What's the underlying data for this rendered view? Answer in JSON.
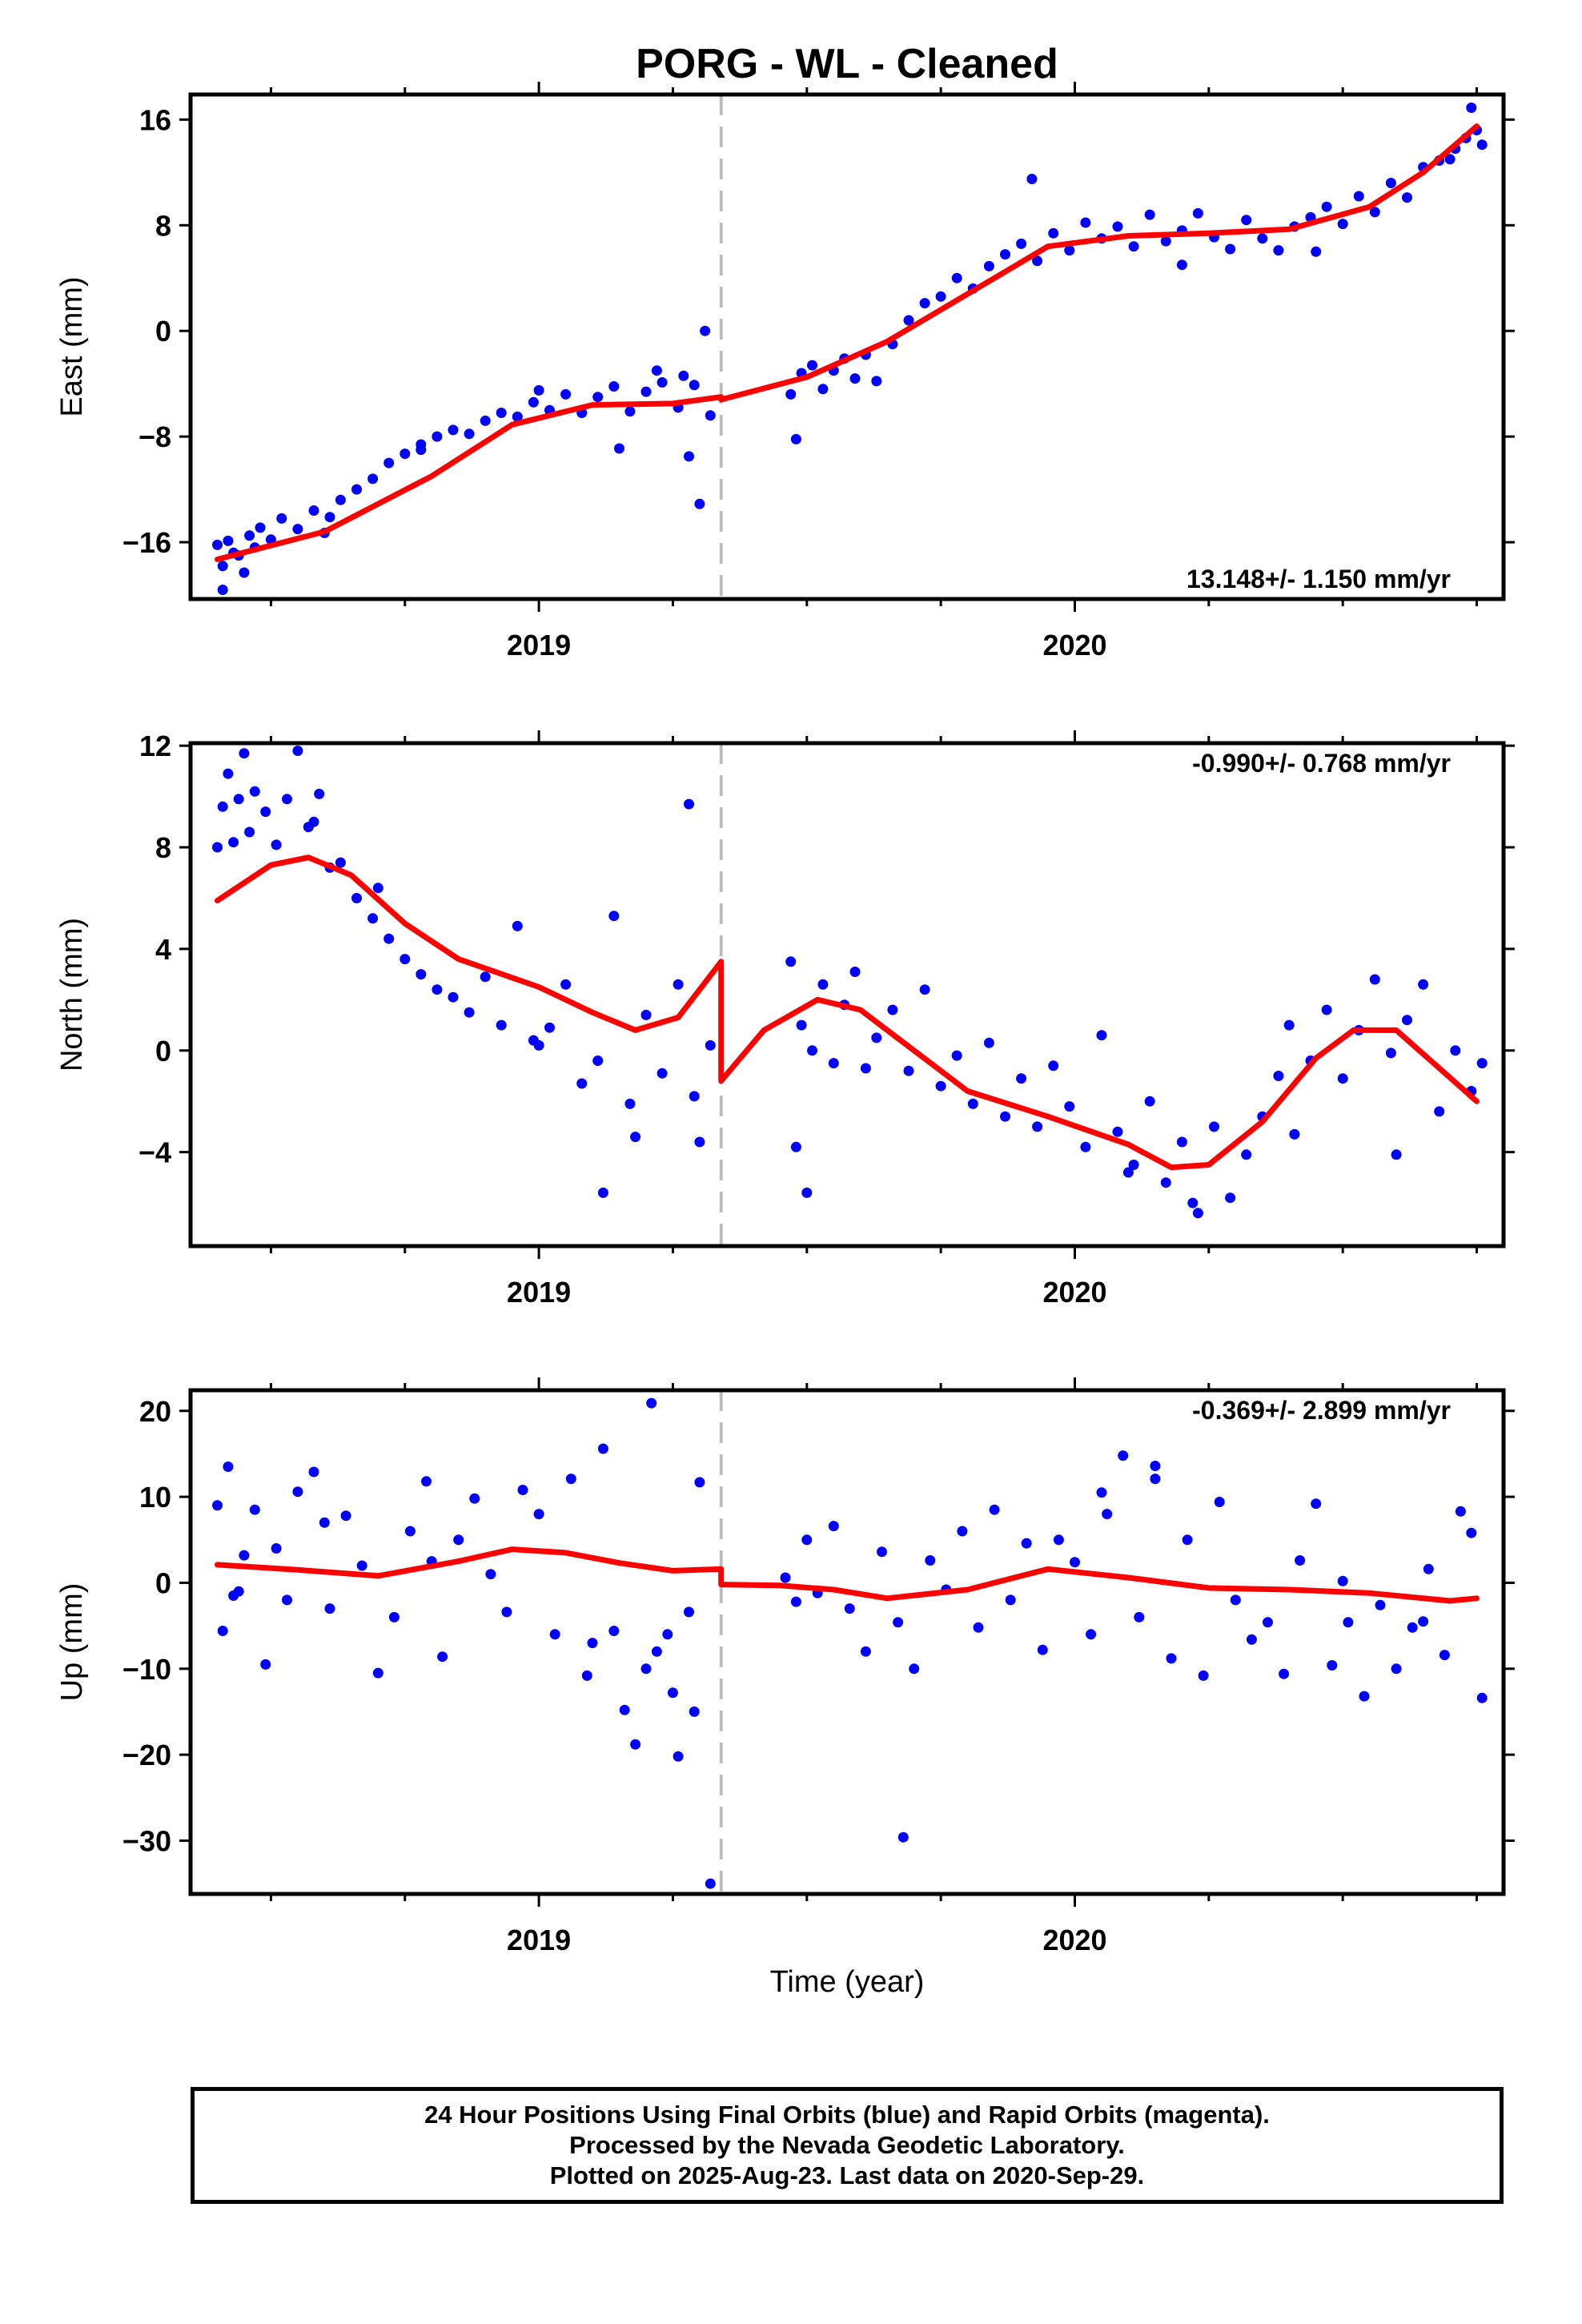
{
  "page": {
    "title": "PORG  - WL - Cleaned",
    "x_axis_label": "Time (year)",
    "footer_lines": [
      "24 Hour Positions Using Final Orbits (blue) and Rapid Orbits (magenta).",
      "Processed by the Nevada Geodetic Laboratory.",
      "Plotted on 2025-Aug-23. Last data on 2020-Sep-29."
    ]
  },
  "colors": {
    "points": "#0000ff",
    "fit": "#ff0000",
    "break_line": "#bdbdbd",
    "frame": "#000000"
  },
  "chart_data": [
    {
      "type": "scatter",
      "name": "East",
      "ylabel": "East (mm)",
      "xlim": [
        2018.35,
        2020.8
      ],
      "ylim": [
        -20.3,
        17.9
      ],
      "y_ticks": [
        16,
        8,
        0,
        -8,
        -16
      ],
      "y_tick_labels": [
        "16",
        "8",
        "0",
        "−8",
        "−16"
      ],
      "x_tick_labels": [
        "2019",
        "2020"
      ],
      "x_ticks": [
        2019,
        2020
      ],
      "x_minor_ticks": [
        2018.5,
        2018.75,
        2019.25,
        2019.5,
        2019.75,
        2020.25,
        2020.5,
        2020.75
      ],
      "break_epoch": 2019.34,
      "rate_label": "13.148+/- 1.150 mm/yr",
      "rate_position": "bottom-right",
      "fit": {
        "x": [
          2018.4,
          2018.6,
          2018.8,
          2018.95,
          2019.1,
          2019.25,
          2019.34,
          2019.34,
          2019.5,
          2019.65,
          2019.8,
          2019.95,
          2020.1,
          2020.25,
          2020.4,
          2020.55,
          2020.65,
          2020.75
        ],
        "y": [
          -17.3,
          -15.2,
          -11.0,
          -7.1,
          -5.6,
          -5.5,
          -5.0,
          -5.2,
          -3.5,
          -0.8,
          2.8,
          6.4,
          7.2,
          7.4,
          7.7,
          9.4,
          12.0,
          15.5
        ]
      },
      "points": {
        "x": [
          2018.4,
          2018.41,
          2018.42,
          2018.43,
          2018.44,
          2018.46,
          2018.47,
          2018.48,
          2018.5,
          2018.52,
          2018.55,
          2018.58,
          2018.61,
          2018.63,
          2018.66,
          2018.69,
          2018.72,
          2018.75,
          2018.78,
          2018.81,
          2018.84,
          2018.87,
          2018.9,
          2018.93,
          2018.96,
          2018.99,
          2019.02,
          2019.05,
          2019.08,
          2019.11,
          2019.14,
          2019.17,
          2019.2,
          2019.23,
          2019.26,
          2019.29,
          2019.32,
          2019.3,
          2019.28,
          2019.22,
          2019.47,
          2019.49,
          2019.51,
          2019.53,
          2019.55,
          2019.57,
          2019.59,
          2019.61,
          2019.63,
          2019.66,
          2019.69,
          2019.72,
          2019.75,
          2019.78,
          2019.81,
          2019.84,
          2019.87,
          2019.9,
          2019.93,
          2019.96,
          2019.99,
          2020.02,
          2020.05,
          2020.08,
          2020.11,
          2020.14,
          2020.17,
          2020.2,
          2020.23,
          2020.26,
          2020.29,
          2020.32,
          2020.35,
          2020.38,
          2020.41,
          2020.44,
          2020.47,
          2020.5,
          2020.53,
          2020.56,
          2020.59,
          2020.62,
          2020.65,
          2020.68,
          2020.71,
          2020.73,
          2020.74,
          2020.75,
          2020.76,
          2019.48,
          2019.92,
          2018.41,
          2018.45,
          2018.6,
          2018.78,
          2019.0,
          2019.15,
          2019.27,
          2019.31,
          2020.2,
          2020.45,
          2020.7
        ],
        "y": [
          -16.2,
          -17.8,
          -15.9,
          -16.8,
          -17.0,
          -15.5,
          -16.4,
          -14.9,
          -15.8,
          -14.2,
          -15.0,
          -13.6,
          -14.1,
          -12.8,
          -12.0,
          -11.2,
          -10.0,
          -9.3,
          -8.6,
          -8.0,
          -7.5,
          -7.8,
          -6.8,
          -6.2,
          -6.5,
          -5.4,
          -6.0,
          -4.8,
          -6.2,
          -5.0,
          -4.2,
          -6.1,
          -4.6,
          -3.9,
          -5.8,
          -4.1,
          -6.4,
          -13.1,
          -9.5,
          -3.0,
          -4.8,
          -3.2,
          -2.6,
          -4.4,
          -3.0,
          -2.1,
          -3.6,
          -1.8,
          -3.8,
          -1.0,
          0.8,
          2.1,
          2.6,
          4.0,
          3.2,
          4.9,
          5.8,
          6.6,
          5.3,
          7.4,
          6.1,
          8.2,
          7.0,
          7.9,
          6.4,
          8.8,
          6.8,
          7.6,
          8.9,
          7.1,
          6.2,
          8.4,
          7.0,
          6.1,
          7.9,
          8.6,
          9.4,
          8.1,
          10.2,
          9.0,
          11.2,
          10.1,
          12.4,
          12.9,
          13.8,
          14.6,
          16.9,
          15.2,
          14.1,
          -8.2,
          11.5,
          -19.6,
          -18.3,
          -15.3,
          -9.0,
          -4.5,
          -8.9,
          -3.4,
          0.0,
          5.0,
          6.0,
          13.0
        ]
      }
    },
    {
      "type": "scatter",
      "name": "North",
      "ylabel": "North (mm)",
      "xlim": [
        2018.35,
        2020.8
      ],
      "ylim": [
        -7.7,
        12.1
      ],
      "y_ticks": [
        12,
        8,
        4,
        0,
        -4
      ],
      "y_tick_labels": [
        "12",
        "8",
        "4",
        "0",
        "−4"
      ],
      "x_tick_labels": [
        "2019",
        "2020"
      ],
      "x_ticks": [
        2019,
        2020
      ],
      "x_minor_ticks": [
        2018.5,
        2018.75,
        2019.25,
        2019.5,
        2019.75,
        2020.25,
        2020.5,
        2020.75
      ],
      "break_epoch": 2019.34,
      "rate_label": "-0.990+/- 0.768 mm/yr",
      "rate_position": "top-right",
      "fit": {
        "x": [
          2018.4,
          2018.5,
          2018.57,
          2018.65,
          2018.75,
          2018.85,
          2019.0,
          2019.1,
          2019.18,
          2019.26,
          2019.34,
          2019.34,
          2019.42,
          2019.52,
          2019.6,
          2019.7,
          2019.8,
          2019.95,
          2020.1,
          2020.18,
          2020.25,
          2020.35,
          2020.45,
          2020.52,
          2020.6,
          2020.75
        ],
        "y": [
          5.9,
          7.3,
          7.6,
          6.9,
          5.0,
          3.6,
          2.5,
          1.5,
          0.8,
          1.3,
          3.5,
          -1.2,
          0.8,
          2.0,
          1.6,
          0.0,
          -1.6,
          -2.6,
          -3.7,
          -4.6,
          -4.5,
          -2.8,
          -0.3,
          0.8,
          0.8,
          -2.0
        ]
      },
      "points": {
        "x": [
          2018.4,
          2018.41,
          2018.42,
          2018.43,
          2018.44,
          2018.45,
          2018.46,
          2018.47,
          2018.49,
          2018.51,
          2018.53,
          2018.55,
          2018.57,
          2018.59,
          2018.61,
          2018.63,
          2018.66,
          2018.69,
          2018.72,
          2018.75,
          2018.78,
          2018.81,
          2018.84,
          2018.87,
          2018.9,
          2018.93,
          2018.96,
          2018.99,
          2019.02,
          2019.05,
          2019.08,
          2019.11,
          2019.14,
          2019.17,
          2019.2,
          2019.23,
          2019.26,
          2019.29,
          2019.32,
          2019.28,
          2019.12,
          2019.47,
          2019.49,
          2019.51,
          2019.53,
          2019.55,
          2019.57,
          2019.59,
          2019.61,
          2019.63,
          2019.66,
          2019.69,
          2019.72,
          2019.75,
          2019.78,
          2019.81,
          2019.84,
          2019.87,
          2019.9,
          2019.93,
          2019.96,
          2019.99,
          2020.02,
          2020.05,
          2020.08,
          2020.11,
          2020.14,
          2020.17,
          2020.2,
          2020.23,
          2020.26,
          2020.29,
          2020.32,
          2020.35,
          2020.38,
          2020.41,
          2020.44,
          2020.47,
          2020.5,
          2020.53,
          2020.56,
          2020.59,
          2020.62,
          2020.65,
          2020.68,
          2020.71,
          2020.74,
          2020.76,
          2019.48,
          2019.5,
          2020.1,
          2020.22,
          2018.58,
          2018.7,
          2019.0,
          2019.18,
          2019.3,
          2020.4,
          2020.6
        ],
        "y": [
          8.0,
          9.6,
          10.9,
          8.2,
          9.9,
          11.7,
          8.6,
          10.2,
          9.4,
          8.1,
          9.9,
          11.8,
          8.8,
          10.1,
          7.2,
          7.4,
          6.0,
          5.2,
          4.4,
          3.6,
          3.0,
          2.4,
          2.1,
          1.5,
          2.9,
          1.0,
          4.9,
          0.4,
          0.9,
          2.6,
          -1.3,
          -0.4,
          5.3,
          -2.1,
          1.4,
          -0.9,
          2.6,
          -1.8,
          0.2,
          9.7,
          -5.6,
          3.5,
          1.0,
          0.0,
          2.6,
          -0.5,
          1.8,
          3.1,
          -0.7,
          0.5,
          1.6,
          -0.8,
          2.4,
          -1.4,
          -0.2,
          -2.1,
          0.3,
          -2.6,
          -1.1,
          -3.0,
          -0.6,
          -2.2,
          -3.8,
          0.6,
          -3.2,
          -4.5,
          -2.0,
          -5.2,
          -3.6,
          -6.4,
          -3.0,
          -5.8,
          -4.1,
          -2.6,
          -1.0,
          -3.3,
          -0.4,
          1.6,
          -1.1,
          0.8,
          2.8,
          -0.1,
          1.2,
          2.6,
          -2.4,
          0.0,
          -1.6,
          -0.5,
          -3.8,
          -5.6,
          -4.8,
          -6.0,
          9.0,
          6.4,
          0.2,
          -3.4,
          -3.6,
          1.0,
          -4.1
        ]
      }
    },
    {
      "type": "scatter",
      "name": "Up",
      "ylabel": "Up (mm)",
      "xlim": [
        2018.35,
        2020.8
      ],
      "ylim": [
        -36.2,
        22.4
      ],
      "y_ticks": [
        20,
        10,
        0,
        -10,
        -20,
        -30
      ],
      "y_tick_labels": [
        "20",
        "10",
        "0",
        "−10",
        "−20",
        "−30"
      ],
      "x_tick_labels": [
        "2019",
        "2020"
      ],
      "x_ticks": [
        2019,
        2020
      ],
      "x_minor_ticks": [
        2018.5,
        2018.75,
        2019.25,
        2019.5,
        2019.75,
        2020.25,
        2020.5,
        2020.75
      ],
      "break_epoch": 2019.34,
      "rate_label": "-0.369+/- 2.899 mm/yr",
      "rate_position": "top-right",
      "fit": {
        "x": [
          2018.4,
          2018.55,
          2018.7,
          2018.85,
          2018.95,
          2019.05,
          2019.15,
          2019.25,
          2019.34,
          2019.34,
          2019.45,
          2019.55,
          2019.65,
          2019.8,
          2019.95,
          2020.1,
          2020.25,
          2020.4,
          2020.55,
          2020.7,
          2020.75
        ],
        "y": [
          2.1,
          1.5,
          0.8,
          2.5,
          3.9,
          3.5,
          2.3,
          1.4,
          1.6,
          -0.2,
          -0.3,
          -0.8,
          -1.8,
          -0.8,
          1.6,
          0.6,
          -0.6,
          -0.8,
          -1.2,
          -2.1,
          -1.8
        ]
      },
      "points": {
        "x": [
          2018.4,
          2018.41,
          2018.42,
          2018.43,
          2018.45,
          2018.47,
          2018.49,
          2018.51,
          2018.53,
          2018.55,
          2018.58,
          2018.61,
          2018.64,
          2018.67,
          2018.7,
          2018.73,
          2018.76,
          2018.79,
          2018.82,
          2018.85,
          2018.88,
          2018.91,
          2018.94,
          2018.97,
          2019.0,
          2019.03,
          2019.06,
          2019.09,
          2019.12,
          2019.14,
          2019.16,
          2019.18,
          2019.2,
          2019.22,
          2019.24,
          2019.26,
          2019.28,
          2019.3,
          2019.32,
          2019.21,
          2019.29,
          2019.46,
          2019.48,
          2019.5,
          2019.52,
          2019.55,
          2019.58,
          2019.61,
          2019.64,
          2019.67,
          2019.7,
          2019.73,
          2019.76,
          2019.79,
          2019.82,
          2019.85,
          2019.88,
          2019.91,
          2019.94,
          2019.97,
          2020.0,
          2020.03,
          2020.06,
          2020.09,
          2020.12,
          2020.15,
          2020.18,
          2020.21,
          2020.24,
          2020.27,
          2020.3,
          2020.33,
          2020.36,
          2020.39,
          2020.42,
          2020.45,
          2020.48,
          2020.51,
          2020.54,
          2020.57,
          2020.6,
          2020.63,
          2020.66,
          2020.69,
          2020.72,
          2020.74,
          2020.76,
          2019.68,
          2020.05,
          2020.15,
          2018.44,
          2018.6,
          2018.8,
          2019.1,
          2019.25,
          2020.5,
          2020.65
        ],
        "y": [
          9.0,
          -5.6,
          13.5,
          -1.5,
          3.2,
          8.5,
          -9.5,
          4.0,
          -2.0,
          10.6,
          12.9,
          -3.0,
          7.8,
          2.0,
          -10.5,
          -4.0,
          6.0,
          11.8,
          -8.6,
          5.0,
          9.8,
          1.0,
          -3.4,
          10.8,
          8.0,
          -6.0,
          12.1,
          -10.8,
          15.6,
          -5.6,
          -14.8,
          -18.8,
          -10.0,
          -8.0,
          -6.0,
          -20.2,
          -3.4,
          11.7,
          -35.0,
          20.9,
          -15.0,
          0.6,
          -2.2,
          5.0,
          -1.2,
          6.6,
          -3.0,
          -8.0,
          3.6,
          -4.6,
          -10.0,
          2.6,
          -0.8,
          6.0,
          -5.2,
          8.5,
          -2.0,
          4.6,
          -7.8,
          5.0,
          2.4,
          -6.0,
          8.0,
          14.8,
          -4.0,
          13.6,
          -8.8,
          5.0,
          -10.8,
          9.4,
          -2.0,
          -6.6,
          -4.6,
          -10.6,
          2.6,
          9.2,
          -9.6,
          -4.6,
          -13.2,
          -2.6,
          -10.0,
          -5.2,
          1.6,
          -8.4,
          8.3,
          5.8,
          -13.4,
          -29.6,
          10.5,
          12.1,
          -1.0,
          7.0,
          2.5,
          -7.0,
          -12.8,
          0.2,
          -4.5
        ]
      }
    }
  ]
}
